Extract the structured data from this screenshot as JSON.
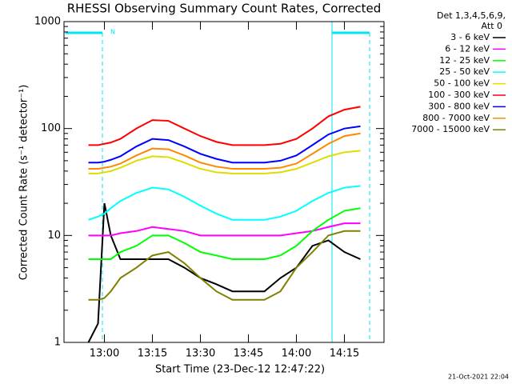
{
  "chart_data": {
    "type": "line",
    "title": "RHESSI Observing Summary Count Rates, Corrected",
    "x_label": "Start Time (23-Dec-12 12:47:22)",
    "y_label": "Corrected Count Rate (s⁻¹ detector⁻¹)",
    "legend_title": [
      "Det 1,3,4,5,6,9,",
      "Att 0"
    ],
    "footer": "21-Oct-2021 22:04",
    "annotation": "N",
    "log_y": true,
    "xlim": [
      767.37,
      867.37
    ],
    "xticks": [
      {
        "value": 780,
        "label": "13:00"
      },
      {
        "value": 795,
        "label": "13:15"
      },
      {
        "value": 810,
        "label": "13:30"
      },
      {
        "value": 825,
        "label": "13:45"
      },
      {
        "value": 840,
        "label": "14:00"
      },
      {
        "value": 855,
        "label": "14:15"
      }
    ],
    "ylim": [
      1,
      1000
    ],
    "yticks": [
      1,
      10,
      100,
      1000
    ],
    "x": [
      775,
      778,
      780,
      782,
      785,
      790,
      795,
      800,
      805,
      810,
      815,
      820,
      825,
      830,
      835,
      840,
      845,
      850,
      855,
      860
    ],
    "series": [
      {
        "name": "3 - 6 keV",
        "color": "#000000",
        "values": [
          1,
          1.5,
          20,
          10,
          6,
          6,
          6,
          6,
          5,
          4,
          3.5,
          3,
          3,
          3,
          4,
          5,
          8,
          9,
          7,
          6
        ]
      },
      {
        "name": "6 - 12 keV",
        "color": "#ff00ff",
        "values": [
          10,
          10,
          10,
          10,
          10.5,
          11,
          12,
          11.5,
          11,
          10,
          10,
          10,
          10,
          10,
          10,
          10.5,
          11,
          12,
          13,
          13
        ]
      },
      {
        "name": "12 - 25 keV",
        "color": "#00ff00",
        "values": [
          6,
          6,
          6,
          6,
          7,
          8,
          10,
          10,
          8.5,
          7,
          6.5,
          6,
          6,
          6,
          6.5,
          8,
          11,
          14,
          17,
          18
        ]
      },
      {
        "name": "25 - 50 keV",
        "color": "#00ffff",
        "values": [
          14,
          15,
          16,
          18,
          21,
          25,
          28,
          27,
          23,
          19,
          16,
          14,
          14,
          14,
          15,
          17,
          21,
          25,
          28,
          29
        ]
      },
      {
        "name": "50 - 100 keV",
        "color": "#dddd00",
        "values": [
          38,
          38,
          39,
          40,
          43,
          50,
          55,
          54,
          48,
          42,
          39,
          38,
          38,
          38,
          39,
          42,
          48,
          55,
          60,
          62
        ]
      },
      {
        "name": "100 - 300 keV",
        "color": "#ff0000",
        "values": [
          70,
          70,
          72,
          74,
          80,
          100,
          120,
          118,
          100,
          85,
          75,
          70,
          70,
          70,
          72,
          80,
          100,
          130,
          150,
          160
        ]
      },
      {
        "name": "300 - 800 keV",
        "color": "#0000ff",
        "values": [
          48,
          48,
          49,
          51,
          55,
          68,
          80,
          78,
          68,
          58,
          52,
          48,
          48,
          48,
          50,
          56,
          70,
          88,
          100,
          105
        ]
      },
      {
        "name": "800 - 7000 keV",
        "color": "#ff8800",
        "values": [
          42,
          42,
          43,
          44,
          47,
          56,
          65,
          64,
          56,
          48,
          44,
          42,
          42,
          42,
          43,
          47,
          58,
          72,
          85,
          90
        ]
      },
      {
        "name": "7000 - 15000 keV",
        "color": "#808000",
        "values": [
          2.5,
          2.5,
          2.6,
          3,
          4,
          5,
          6.5,
          7,
          5.5,
          4,
          3,
          2.5,
          2.5,
          2.5,
          3,
          5,
          7,
          10,
          11,
          11
        ]
      }
    ]
  }
}
